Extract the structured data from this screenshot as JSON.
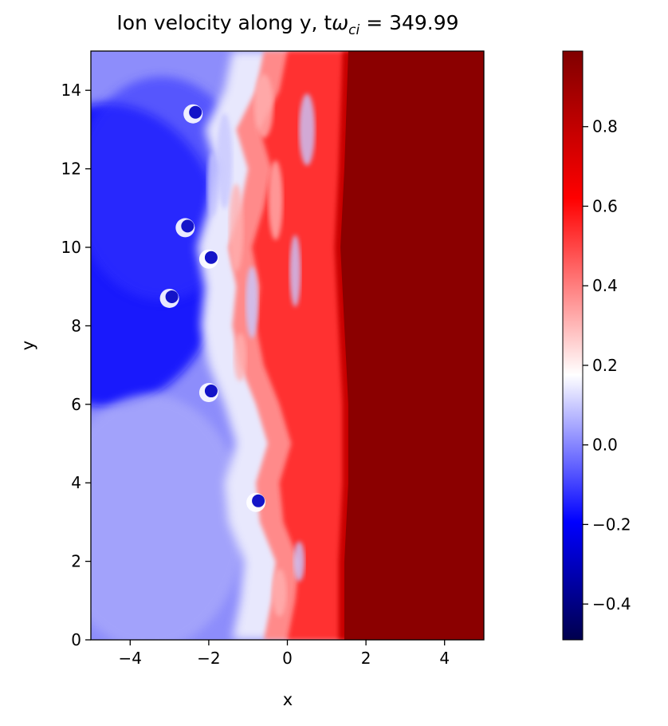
{
  "chart_data": {
    "type": "heatmap",
    "title": {
      "prefix": "Ion velocity along y, t",
      "omega": "ω",
      "subscript": "ci",
      "suffix": " = 349.99"
    },
    "xlabel": "x",
    "ylabel": "y",
    "xlim": [
      -5,
      5
    ],
    "ylim": [
      0,
      15
    ],
    "x_ticks": [
      -4,
      -2,
      0,
      2,
      4
    ],
    "x_tick_labels": [
      "−4",
      "−2",
      "0",
      "2",
      "4"
    ],
    "y_ticks": [
      0,
      2,
      4,
      6,
      8,
      10,
      12,
      14
    ],
    "y_tick_labels": [
      "0",
      "2",
      "4",
      "6",
      "8",
      "10",
      "12",
      "14"
    ],
    "colormap": "seismic",
    "colorbar": {
      "vmin": -0.49,
      "vmax": 0.99,
      "ticks": [
        -0.4,
        -0.2,
        0.0,
        0.2,
        0.4,
        0.6,
        0.8
      ],
      "tick_labels": [
        "−0.4",
        "−0.2",
        "0.0",
        "0.2",
        "0.4",
        "0.6",
        "0.8"
      ]
    },
    "field": {
      "description_values": {
        "left_region_value": -0.2,
        "right_region_value": 0.99
      },
      "front_x_by_y": [
        [
          0,
          -0.6
        ],
        [
          1,
          -0.4
        ],
        [
          2,
          -0.3
        ],
        [
          3,
          -0.7
        ],
        [
          4,
          -0.8
        ],
        [
          5,
          -0.5
        ],
        [
          6,
          -0.8
        ],
        [
          7,
          -1.2
        ],
        [
          8,
          -1.4
        ],
        [
          9,
          -1.3
        ],
        [
          10,
          -1.5
        ],
        [
          11,
          -1.2
        ],
        [
          12,
          -1.0
        ],
        [
          13,
          -1.3
        ],
        [
          14,
          -0.8
        ],
        [
          15,
          -0.6
        ]
      ],
      "inner_front_x_by_y": [
        [
          0,
          1.3
        ],
        [
          2,
          1.3
        ],
        [
          4,
          1.4
        ],
        [
          6,
          1.4
        ],
        [
          8,
          1.3
        ],
        [
          10,
          1.2
        ],
        [
          12,
          1.3
        ],
        [
          15,
          1.4
        ]
      ],
      "vortices": [
        [
          -2.6,
          10.5
        ],
        [
          -2.0,
          9.7
        ],
        [
          -3.0,
          8.7
        ],
        [
          -2.0,
          6.3
        ],
        [
          -0.8,
          3.5
        ],
        [
          -2.4,
          13.4
        ]
      ]
    }
  }
}
